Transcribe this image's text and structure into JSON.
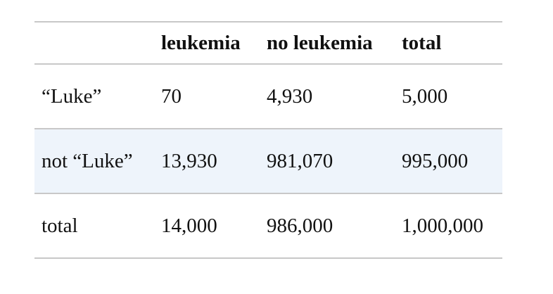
{
  "table": {
    "headers": [
      "",
      "leukemia",
      "no leukemia",
      "total"
    ],
    "rows": [
      [
        "“Luke”",
        "70",
        "4,930",
        "5,000"
      ],
      [
        "not “Luke”",
        "13,930",
        "981,070",
        "995,000"
      ],
      [
        "total",
        "14,000",
        "986,000",
        "1,000,000"
      ]
    ]
  }
}
